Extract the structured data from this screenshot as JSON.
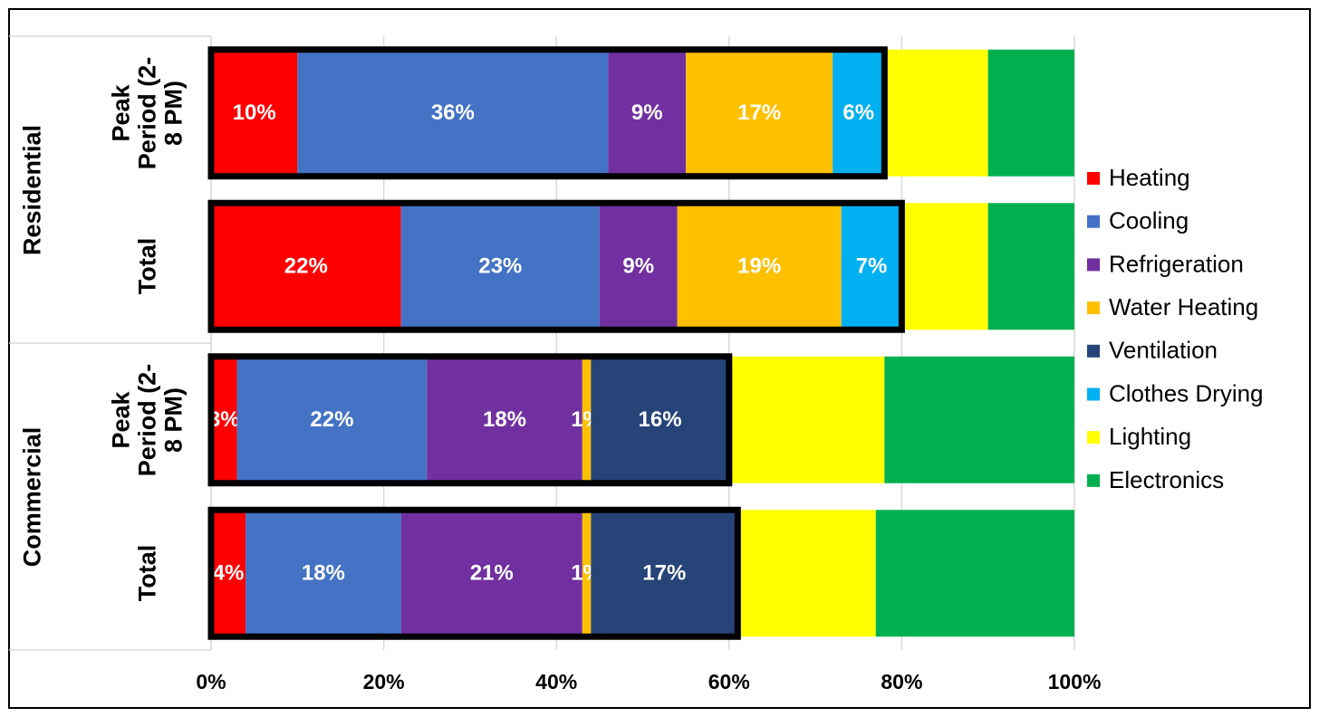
{
  "chart_data": {
    "type": "stacked-bar-horizontal",
    "groups": [
      {
        "name": "Residential",
        "span": 2
      },
      {
        "name": "Commercial",
        "span": 2
      }
    ],
    "categories": [
      "Peak Period (2-8 PM)",
      "Total",
      "Peak Period (2-8 PM)",
      "Total"
    ],
    "series": [
      {
        "name": "Heating",
        "color": "#ff0000",
        "values": [
          10,
          22,
          3,
          4
        ],
        "value_labels": [
          "10%",
          "22%",
          "3%",
          "4%"
        ]
      },
      {
        "name": "Cooling",
        "color": "#4472c4",
        "values": [
          36,
          23,
          22,
          18
        ],
        "value_labels": [
          "36%",
          "23%",
          "22%",
          "18%"
        ]
      },
      {
        "name": "Refrigeration",
        "color": "#7030a0",
        "values": [
          9,
          9,
          18,
          21
        ],
        "value_labels": [
          "9%",
          "9%",
          "18%",
          "21%"
        ]
      },
      {
        "name": "Water Heating",
        "color": "#ffc000",
        "values": [
          17,
          19,
          1,
          1
        ],
        "value_labels": [
          "17%",
          "19%",
          "1%",
          "1%"
        ]
      },
      {
        "name": "Ventilation",
        "color": "#264478",
        "values": [
          0,
          0,
          16,
          17
        ],
        "value_labels": [
          null,
          null,
          "16%",
          "17%"
        ]
      },
      {
        "name": "Clothes Drying",
        "color": "#00b0f0",
        "values": [
          6,
          7,
          0,
          0
        ],
        "value_labels": [
          "6%",
          "7%",
          null,
          null
        ]
      },
      {
        "name": "Lighting",
        "color": "#ffff00",
        "values": [
          12,
          10,
          18,
          16
        ],
        "value_labels": [
          null,
          null,
          null,
          null
        ]
      },
      {
        "name": "Electronics",
        "color": "#00b050",
        "values": [
          10,
          10,
          22,
          23
        ],
        "value_labels": [
          null,
          null,
          null,
          null
        ]
      }
    ],
    "outline_first_series": 6,
    "xlim": [
      0,
      100
    ],
    "xticks": [
      {
        "value": 0,
        "label": "0%"
      },
      {
        "value": 20,
        "label": "20%"
      },
      {
        "value": 40,
        "label": "40%"
      },
      {
        "value": 60,
        "label": "60%"
      },
      {
        "value": 80,
        "label": "80%"
      },
      {
        "value": 100,
        "label": "100%"
      }
    ],
    "grid": true,
    "legend": "right"
  }
}
